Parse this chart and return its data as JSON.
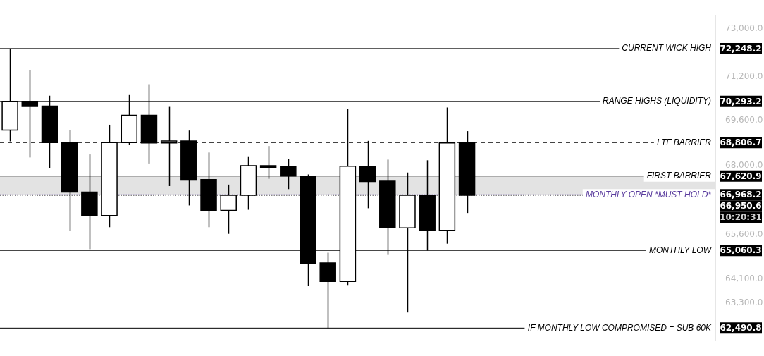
{
  "chart_data": {
    "type": "candlestick",
    "log": "y",
    "tick_labels": "y",
    "categories": [
      null,
      null,
      null,
      null,
      null,
      null,
      null,
      null,
      null,
      null,
      null,
      null,
      null,
      null,
      null,
      null,
      null,
      null,
      null,
      null,
      null,
      null,
      null,
      null,
      null,
      null,
      null,
      null,
      null,
      null,
      null,
      null,
      null,
      null,
      null,
      null
    ],
    "ohlc": [
      [
        69254,
        72248.2,
        68852,
        70293
      ],
      [
        70293,
        71430,
        68277,
        70109
      ],
      [
        70125,
        70502,
        67911,
        68807
      ],
      [
        68807,
        69254,
        65726,
        67061
      ],
      [
        67061,
        68384,
        65104,
        66248
      ],
      [
        66248,
        69447,
        65850,
        68807
      ],
      [
        68807,
        70526,
        68713,
        69790
      ],
      [
        69790,
        70922,
        68064,
        68792
      ],
      [
        68792,
        70095,
        67270,
        68861
      ],
      [
        68861,
        69238,
        66597,
        67480
      ],
      [
        67496,
        68453,
        65850,
        66426
      ],
      [
        66426,
        67322,
        65623,
        66951
      ],
      [
        66951,
        68293,
        66448,
        67989
      ],
      [
        67989,
        68683,
        67525,
        67934
      ],
      [
        67950,
        68224,
        67164,
        67621
      ],
      [
        67621,
        67677,
        63881,
        64626
      ],
      [
        64641,
        64982,
        62490.8,
        64023
      ],
      [
        64023,
        70008,
        63903,
        67966
      ],
      [
        67966,
        68868,
        66501,
        67428
      ],
      [
        67444,
        68201,
        64908,
        65828
      ],
      [
        65828,
        67745,
        62999,
        66951
      ],
      [
        66951,
        68178,
        65054,
        65739
      ],
      [
        65739,
        70071,
        65288,
        68792
      ],
      [
        68807,
        69215,
        66337,
        66950.6
      ],
      null,
      null,
      null,
      null,
      null,
      null,
      null,
      null,
      null,
      null,
      null,
      null
    ],
    "colors": [
      "#ffffff",
      "#000000",
      "#000000",
      "#000000",
      "#000000",
      "#ffffff",
      "#ffffff",
      "#000000",
      "#ffffff",
      "#000000",
      "#000000",
      "#ffffff",
      "#ffffff",
      "#000000",
      "#000000",
      "#000000",
      "#000000",
      "#ffffff",
      "#000000",
      "#000000",
      "#ffffff",
      "#000000",
      "#ffffff",
      "#000000",
      null,
      null,
      null,
      null,
      null,
      null,
      null,
      null,
      null,
      null,
      null,
      null
    ],
    "ylim": [
      62070,
      73520
    ],
    "yticks": [
      {
        "value": 73000,
        "label": "73,000.0"
      },
      {
        "value": 71200,
        "label": "71,200.0"
      },
      {
        "value": 69600,
        "label": "69,600.0"
      },
      {
        "value": 68000,
        "label": "68,000.0"
      },
      {
        "value": 65600,
        "label": "65,600.0"
      },
      {
        "value": 64100,
        "label": "64,100.0"
      },
      {
        "value": 63300,
        "label": "63,300.0"
      }
    ],
    "bands": [
      {
        "axis": "y",
        "from": 66968.2,
        "to": 67620.9,
        "color": "#e3e3e3"
      }
    ],
    "ref_lines": [
      {
        "axis": "y",
        "value": 72248.2,
        "label": "CURRENT WICK HIGH",
        "color": "#000000",
        "line_style": "solid"
      },
      {
        "axis": "y",
        "value": 70293.2,
        "label": "RANGE HIGHS (LIQUIDITY)",
        "color": "#000000",
        "line_style": "solid"
      },
      {
        "axis": "y",
        "value": 68806.7,
        "label": "LTF BARRIER",
        "color": "#000000",
        "line_style": "dashed"
      },
      {
        "axis": "y",
        "value": 67620.9,
        "label": "FIRST BARRIER",
        "color": "#000000",
        "line_style": "solid"
      },
      {
        "axis": "y",
        "value": 66968.2,
        "label": "MONTHLY OPEN *MUST HOLD*",
        "color": "#5a3c9e",
        "line_style": "dotted"
      },
      {
        "axis": "y",
        "value": 66950.6,
        "color": "#000000",
        "line_style": "dotted"
      },
      {
        "axis": "y",
        "value": 65060.3,
        "label": "MONTHLY LOW",
        "color": "#000000",
        "line_style": "solid"
      },
      {
        "axis": "y",
        "value": 62490.8,
        "label": "IF MONTHLY LOW COMPROMISED = SUB 60K",
        "color": "#000000",
        "line_style": "solid"
      }
    ],
    "annotations": [
      "72,248.2",
      "70,293.2",
      "68,806.7",
      "67,620.9",
      "66,968.2",
      "66,950.6",
      "65,060.3",
      "62,490.8",
      "10:20:31"
    ]
  }
}
